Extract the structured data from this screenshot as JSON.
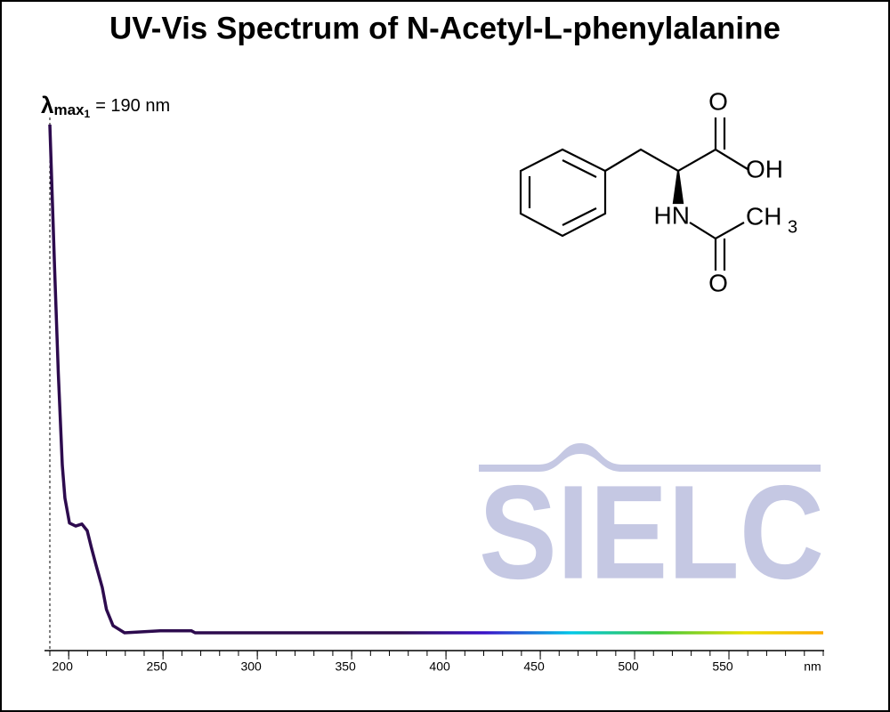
{
  "chart_data": {
    "type": "line",
    "title": "UV-Vis Spectrum of N-Acetyl-L-phenylalanine",
    "annotation": {
      "symbol": "λ",
      "subscript": "max",
      "index": "1",
      "text": "= 190 nm",
      "x": 190
    },
    "x_label": "nm",
    "x": [
      190,
      192.5,
      194.5,
      196.6,
      198,
      200.4,
      203.7,
      207,
      209.8,
      212,
      214.5,
      217.8,
      220,
      223.5,
      229.6,
      248.5,
      265,
      267,
      600
    ],
    "series": [
      {
        "name": "N-Acetyl-L-phenylalanine",
        "values": [
          1.0,
          0.72,
          0.51,
          0.33,
          0.265,
          0.216,
          0.21,
          0.214,
          0.201,
          0.168,
          0.133,
          0.089,
          0.046,
          0.014,
          0,
          0.004,
          0.004,
          0,
          0
        ],
        "gradient": [
          "#2d0b4e",
          "#2d0b4e",
          "#2d0b4e",
          "#2d0b4e",
          "#2d0b4e",
          "#3a12c8",
          "#00c8e8",
          "#3cc83c",
          "#e8e000",
          "#ffa500"
        ]
      }
    ],
    "xlim": [
      190,
      600
    ],
    "ylim": [
      0,
      1
    ],
    "xticks": [
      200,
      250,
      300,
      350,
      400,
      450,
      500,
      550
    ],
    "xminorticks": [
      190,
      200,
      210,
      220,
      230,
      240,
      250,
      260,
      270,
      280,
      290,
      300,
      310,
      320,
      330,
      340,
      350,
      360,
      370,
      380,
      390,
      400,
      410,
      420,
      430,
      440,
      450,
      460,
      470,
      480,
      490,
      500,
      510,
      520,
      530,
      540,
      550,
      560,
      570,
      580,
      590,
      600
    ],
    "structure_labels": [
      "O",
      "OH",
      "HN",
      "CH",
      "3",
      "O"
    ],
    "watermark": "SIELC"
  }
}
